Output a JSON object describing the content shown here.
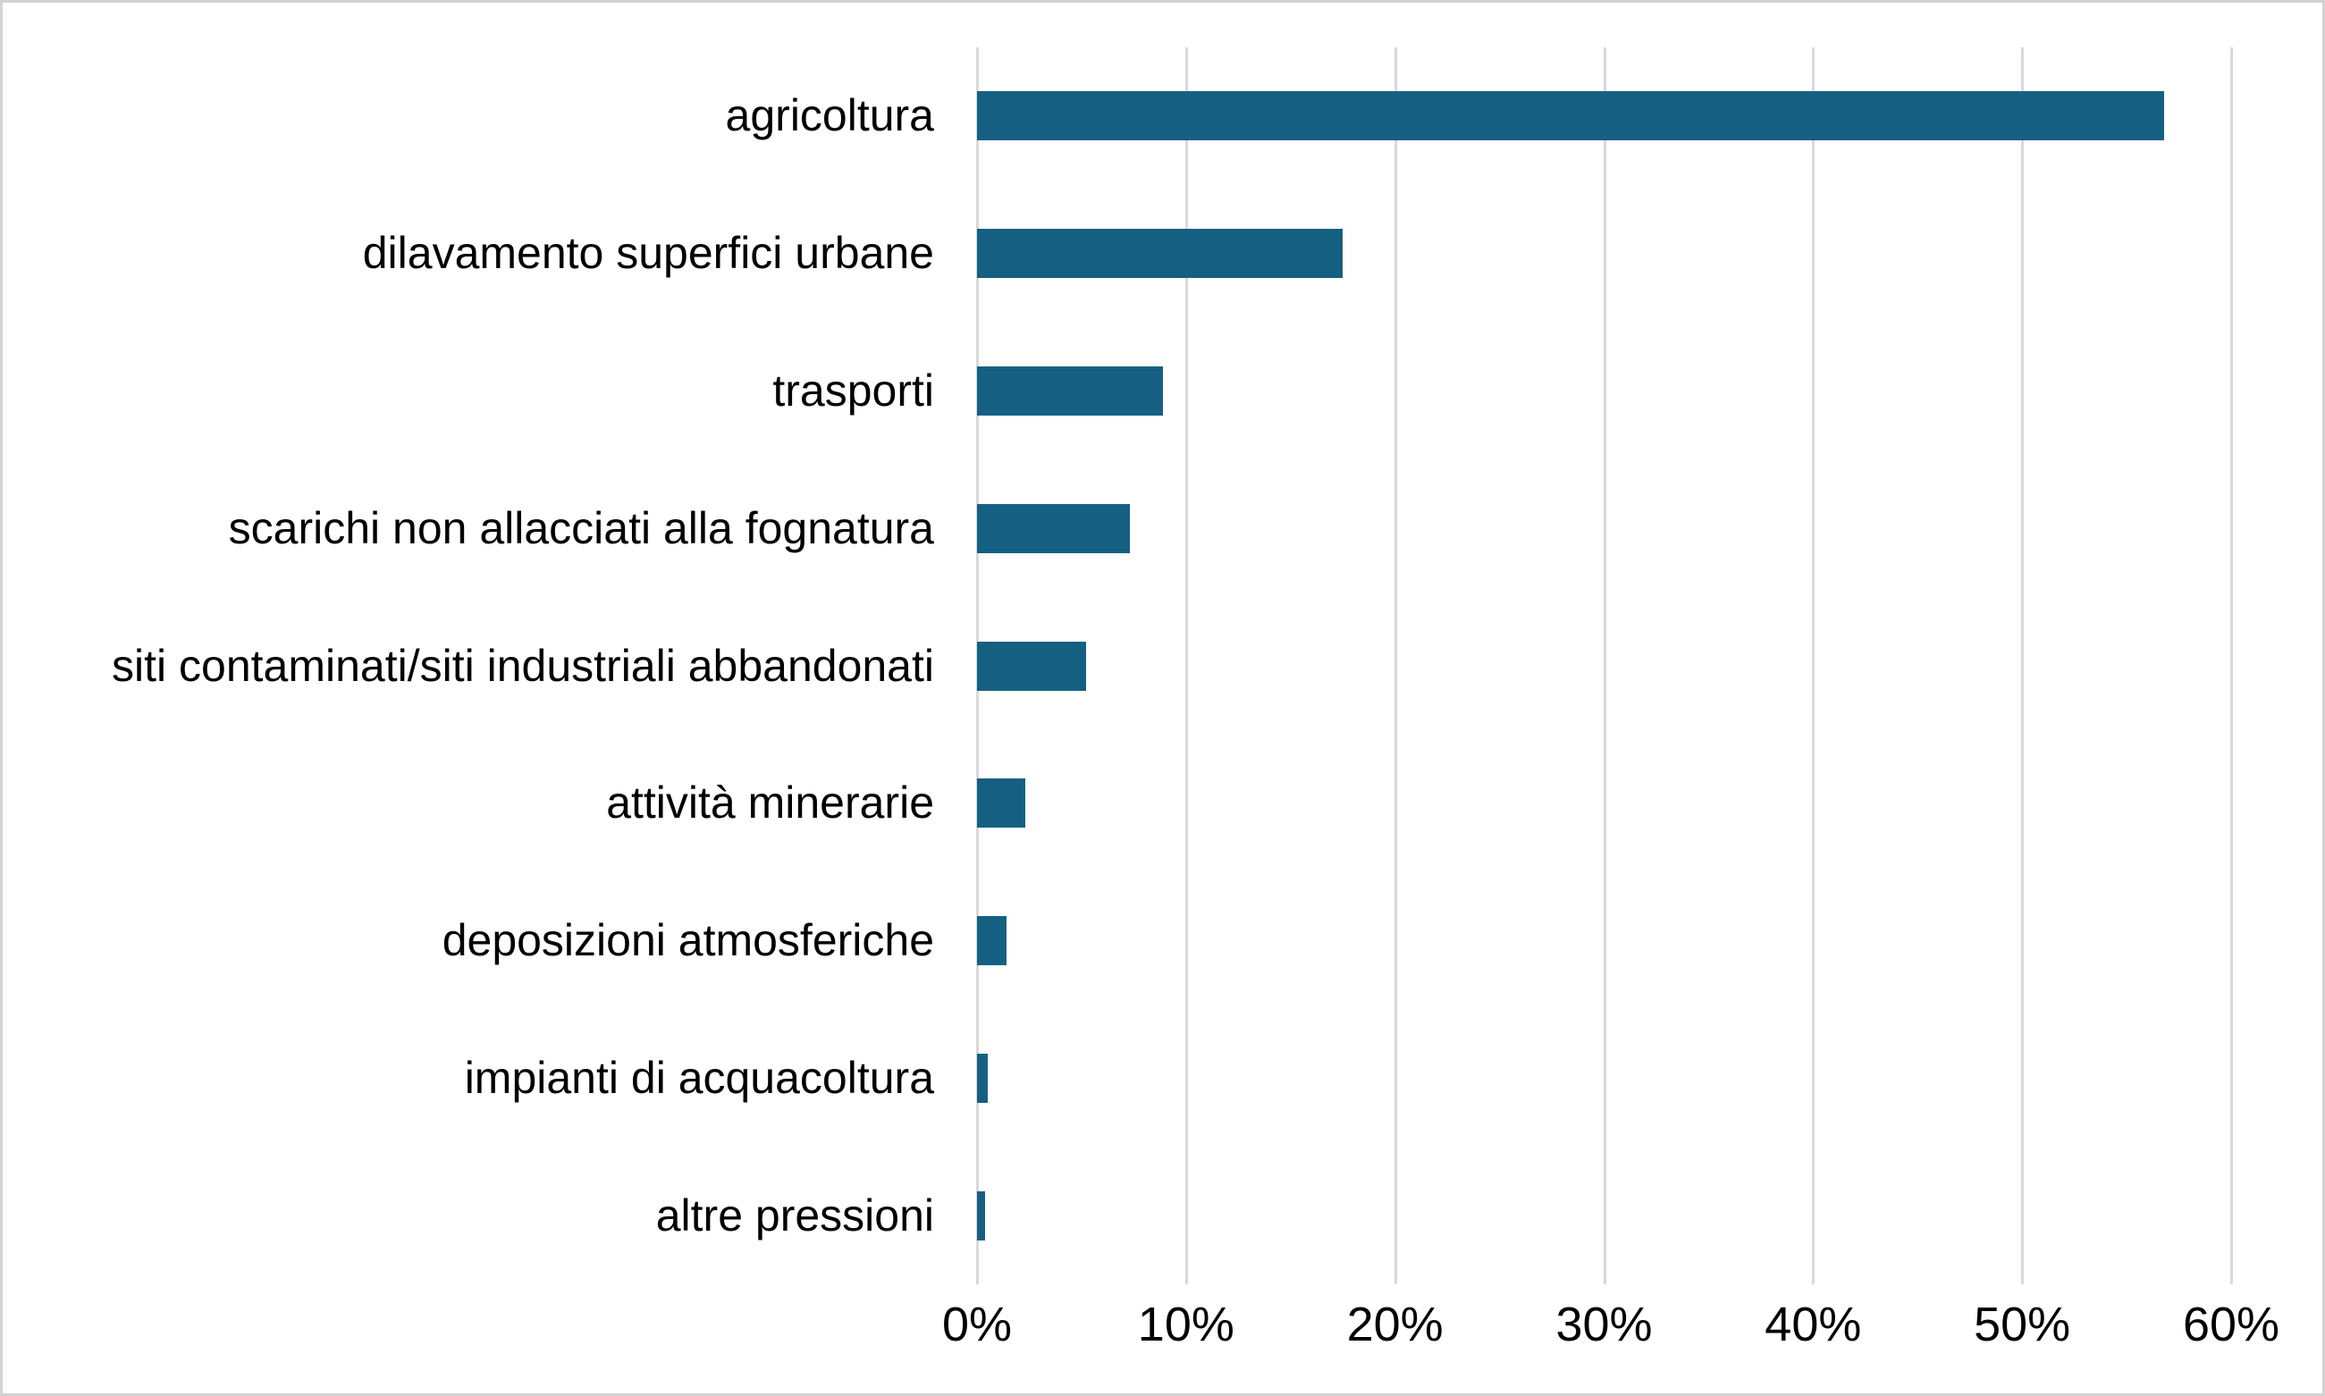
{
  "chart_data": {
    "type": "bar",
    "orientation": "horizontal",
    "title": "",
    "categories": [
      "agricoltura",
      "dilavamento superfici urbane",
      "trasporti",
      "scarichi non allacciati alla fognatura",
      "siti contaminati/siti industriali abbandonati",
      "attività minerarie",
      "deposizioni atmosferiche",
      "impianti di acquacoltura",
      "altre pressioni"
    ],
    "values": [
      56.8,
      17.5,
      8.9,
      7.3,
      5.2,
      2.3,
      1.4,
      0.5,
      0.4
    ],
    "value_unit": "%",
    "xlabel": "",
    "ylabel": "",
    "x_axis": {
      "min": 0,
      "max": 60,
      "tick_step": 10,
      "ticks": [
        "0%",
        "10%",
        "20%",
        "30%",
        "40%",
        "50%",
        "60%"
      ]
    },
    "grid": "vertical-only",
    "legend": "none",
    "colors": {
      "bar": "#156082",
      "gridline": "#d9d9d9",
      "frame_border": "#d2d2d2",
      "label_text": "#000000"
    }
  }
}
